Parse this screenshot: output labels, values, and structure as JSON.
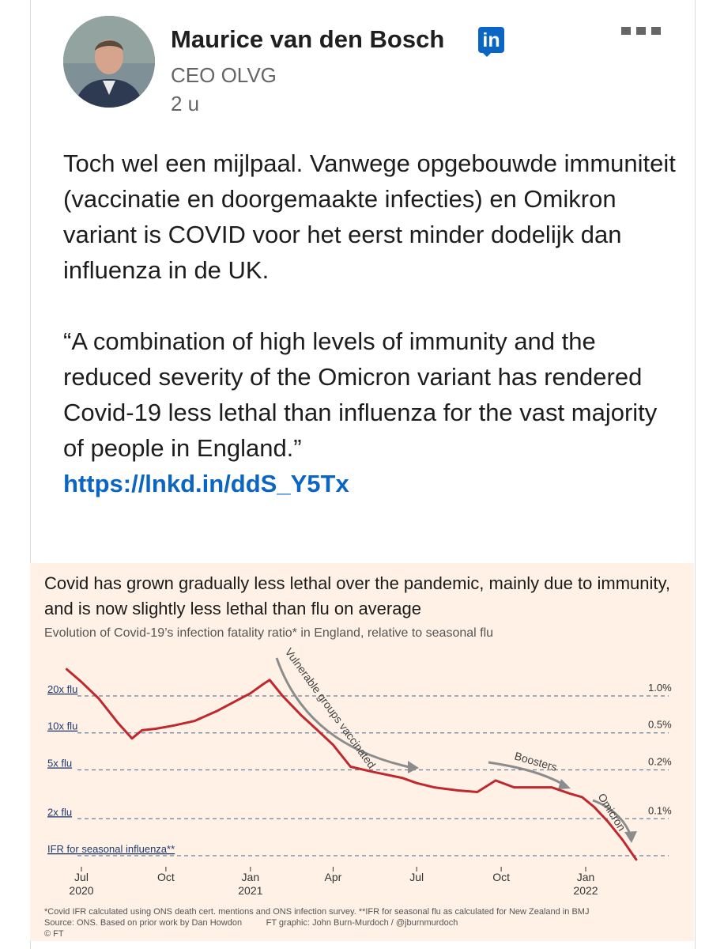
{
  "post": {
    "author": "Maurice van den Bosch",
    "badge": "in",
    "role": "CEO OLVG",
    "time": "2 u",
    "paragraph1": "Toch wel een mijlpaal. Vanwege opgebouwde immuniteit (vaccinatie en doorgemaakte infecties) en Omikron variant is COVID voor het eerst minder dodelijk dan influenza in de UK.",
    "paragraph2": "“A combination of high levels of immunity and the reduced severity of the Omicron variant has rendered Covid-19 less lethal than influenza for the vast majority of people in England.”",
    "link": "https://lnkd.in/ddS_Y5Tx"
  },
  "chart_data": {
    "type": "line",
    "title": "Covid has grown gradually less lethal over the pandemic, mainly due to immunity, and is now slightly less lethal than flu on average",
    "subtitle": "Evolution of Covid-19’s infection fatality ratio* in England, relative to seasonal flu",
    "y_scale": "log",
    "ylim_relative_to_flu": [
      0.85,
      45
    ],
    "left_ticks": [
      {
        "label": "20x flu",
        "value": 20
      },
      {
        "label": "10x flu",
        "value": 10
      },
      {
        "label": "5x flu",
        "value": 5
      },
      {
        "label": "2x flu",
        "value": 2
      },
      {
        "label": "IFR for seasonal influenza**",
        "value": 1
      }
    ],
    "right_ticks": [
      "1.0%",
      "0.5%",
      "0.2%",
      "0.1%"
    ],
    "x_ticks": [
      {
        "label": "Jul",
        "sub": "2020",
        "date": "2020-07-01"
      },
      {
        "label": "Oct",
        "sub": "",
        "date": "2020-10-01"
      },
      {
        "label": "Jan",
        "sub": "2021",
        "date": "2021-01-01"
      },
      {
        "label": "Apr",
        "sub": "",
        "date": "2021-04-01"
      },
      {
        "label": "Jul",
        "sub": "",
        "date": "2021-07-01"
      },
      {
        "label": "Oct",
        "sub": "",
        "date": "2021-10-01"
      },
      {
        "label": "Jan",
        "sub": "2022",
        "date": "2022-01-01"
      }
    ],
    "series": [
      {
        "color": "#c0282d",
        "points": [
          [
            "2020-06-15",
            33
          ],
          [
            "2020-07-01",
            26
          ],
          [
            "2020-07-20",
            19
          ],
          [
            "2020-08-10",
            12
          ],
          [
            "2020-08-25",
            9
          ],
          [
            "2020-09-05",
            10.5
          ],
          [
            "2020-09-20",
            10.8
          ],
          [
            "2020-10-10",
            11.5
          ],
          [
            "2020-11-01",
            12.5
          ],
          [
            "2020-11-25",
            15
          ],
          [
            "2020-12-15",
            18
          ],
          [
            "2021-01-01",
            21
          ],
          [
            "2021-01-15",
            25
          ],
          [
            "2021-01-22",
            27
          ],
          [
            "2021-02-05",
            20
          ],
          [
            "2021-02-25",
            14
          ],
          [
            "2021-03-15",
            10.5
          ],
          [
            "2021-04-01",
            8
          ],
          [
            "2021-04-20",
            5.3
          ],
          [
            "2021-05-15",
            4.8
          ],
          [
            "2021-06-15",
            4.3
          ],
          [
            "2021-07-01",
            3.9
          ],
          [
            "2021-07-20",
            3.6
          ],
          [
            "2021-08-15",
            3.4
          ],
          [
            "2021-09-05",
            3.3
          ],
          [
            "2021-09-25",
            4.1
          ],
          [
            "2021-10-15",
            3.6
          ],
          [
            "2021-11-05",
            3.6
          ],
          [
            "2021-11-25",
            3.6
          ],
          [
            "2021-12-15",
            3.2
          ],
          [
            "2021-12-28",
            3.0
          ],
          [
            "2022-01-10",
            2.5
          ],
          [
            "2022-01-25",
            1.9
          ],
          [
            "2022-02-10",
            1.35
          ],
          [
            "2022-02-25",
            0.93
          ]
        ]
      }
    ],
    "annotations": [
      "Vulnerable groups vaccinated",
      "Boosters",
      "Omicron"
    ],
    "footnotes": [
      "*Covid IFR calculated using ONS death cert. mentions and ONS infection survey. **IFR for seasonal flu as calculated for New Zealand in BMJ",
      "Source: ONS. Based on prior work by Dan Howdon          FT graphic: John Burn-Murdoch / @jburnmurdoch",
      "© FT"
    ]
  }
}
